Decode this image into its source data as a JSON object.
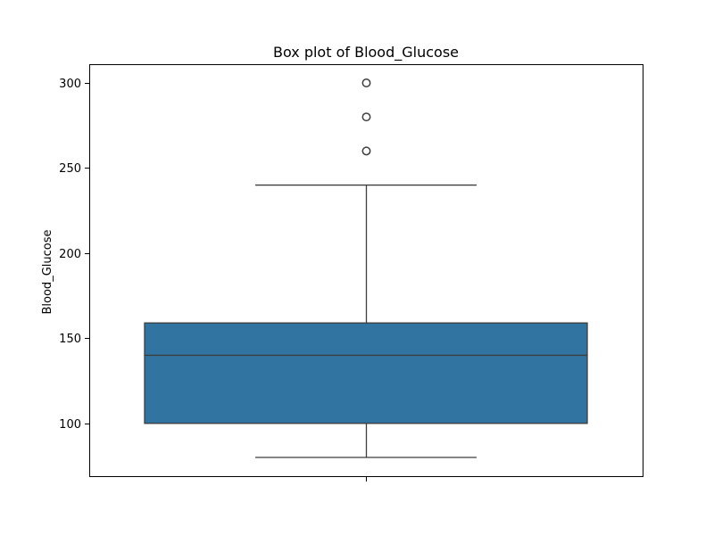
{
  "chart_data": {
    "type": "box",
    "title": "Box plot of Blood_Glucose",
    "xlabel": "",
    "ylabel": "Blood_Glucose",
    "ylim": [
      69,
      311
    ],
    "yticks": [
      100,
      150,
      200,
      250,
      300
    ],
    "grid": false,
    "box": {
      "whisker_low": 80,
      "q1": 100,
      "median": 140,
      "q3": 159,
      "whisker_high": 240,
      "outliers": [
        260,
        280,
        300
      ]
    },
    "box_color": "#3274a1",
    "line_color": "#3d3d3d"
  }
}
